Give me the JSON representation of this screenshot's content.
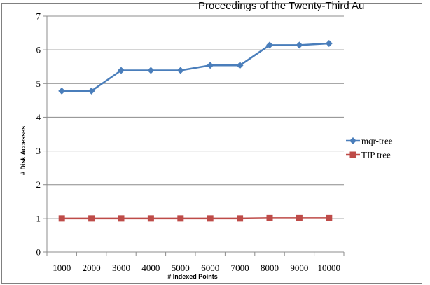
{
  "header_text": "Proceedings of the Twenty-Third Au",
  "chart_data": {
    "type": "line",
    "title": "",
    "xlabel": "# Indexed Points",
    "ylabel": "# Disk Accesses",
    "categories": [
      "1000",
      "2000",
      "3000",
      "4000",
      "5000",
      "6000",
      "7000",
      "8000",
      "9000",
      "10000"
    ],
    "ylim": [
      0,
      7
    ],
    "yticks": [
      "0",
      "1",
      "2",
      "3",
      "4",
      "5",
      "6",
      "7"
    ],
    "grid": "horizontal",
    "legend_position": "right",
    "series": [
      {
        "name": "mqr-tree",
        "color": "#4a7ebb",
        "marker": "diamond",
        "values": [
          4.78,
          4.78,
          5.39,
          5.39,
          5.39,
          5.54,
          5.54,
          6.14,
          6.14,
          6.19
        ]
      },
      {
        "name": "TIP tree",
        "color": "#be4b48",
        "marker": "square",
        "values": [
          1.0,
          1.0,
          1.0,
          1.0,
          1.0,
          1.0,
          1.0,
          1.01,
          1.01,
          1.01
        ]
      }
    ]
  }
}
